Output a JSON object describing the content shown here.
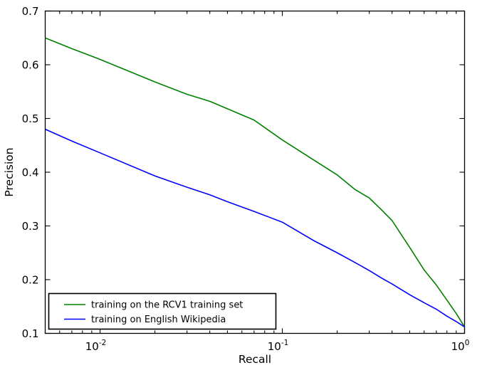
{
  "chart_data": {
    "type": "line",
    "title": "",
    "xlabel": "Recall",
    "ylabel": "Precision",
    "x_scale": "log",
    "xlim": [
      0.005,
      1.0
    ],
    "ylim": [
      0.1,
      0.7
    ],
    "grid": false,
    "legend_position": "lower left",
    "xticks": [
      {
        "value": 0.01,
        "mantissa": "10",
        "exponent": "-2"
      },
      {
        "value": 0.1,
        "mantissa": "10",
        "exponent": "-1"
      },
      {
        "value": 1.0,
        "mantissa": "10",
        "exponent": "0"
      }
    ],
    "yticks": [
      {
        "value": 0.1,
        "label": "0.1"
      },
      {
        "value": 0.2,
        "label": "0.2"
      },
      {
        "value": 0.3,
        "label": "0.3"
      },
      {
        "value": 0.4,
        "label": "0.4"
      },
      {
        "value": 0.5,
        "label": "0.5"
      },
      {
        "value": 0.6,
        "label": "0.6"
      },
      {
        "value": 0.7,
        "label": "0.7"
      }
    ],
    "series": [
      {
        "name": "training on the RCV1 training set",
        "color": "#008000",
        "x": [
          0.005,
          0.007,
          0.01,
          0.02,
          0.03,
          0.04,
          0.05,
          0.07,
          0.1,
          0.15,
          0.2,
          0.25,
          0.3,
          0.35,
          0.4,
          0.5,
          0.6,
          0.7,
          0.8,
          0.9,
          1.0
        ],
        "y": [
          0.65,
          0.63,
          0.61,
          0.568,
          0.545,
          0.532,
          0.518,
          0.497,
          0.46,
          0.422,
          0.395,
          0.368,
          0.352,
          0.33,
          0.31,
          0.26,
          0.218,
          0.19,
          0.162,
          0.137,
          0.112
        ]
      },
      {
        "name": "training on English Wikipedia",
        "color": "#0000ff",
        "x": [
          0.005,
          0.007,
          0.01,
          0.02,
          0.03,
          0.04,
          0.05,
          0.07,
          0.1,
          0.15,
          0.2,
          0.25,
          0.3,
          0.35,
          0.4,
          0.5,
          0.6,
          0.7,
          0.8,
          0.9,
          1.0
        ],
        "y": [
          0.48,
          0.458,
          0.436,
          0.393,
          0.372,
          0.358,
          0.345,
          0.327,
          0.307,
          0.272,
          0.25,
          0.232,
          0.217,
          0.203,
          0.192,
          0.172,
          0.157,
          0.145,
          0.132,
          0.122,
          0.112
        ]
      }
    ]
  }
}
